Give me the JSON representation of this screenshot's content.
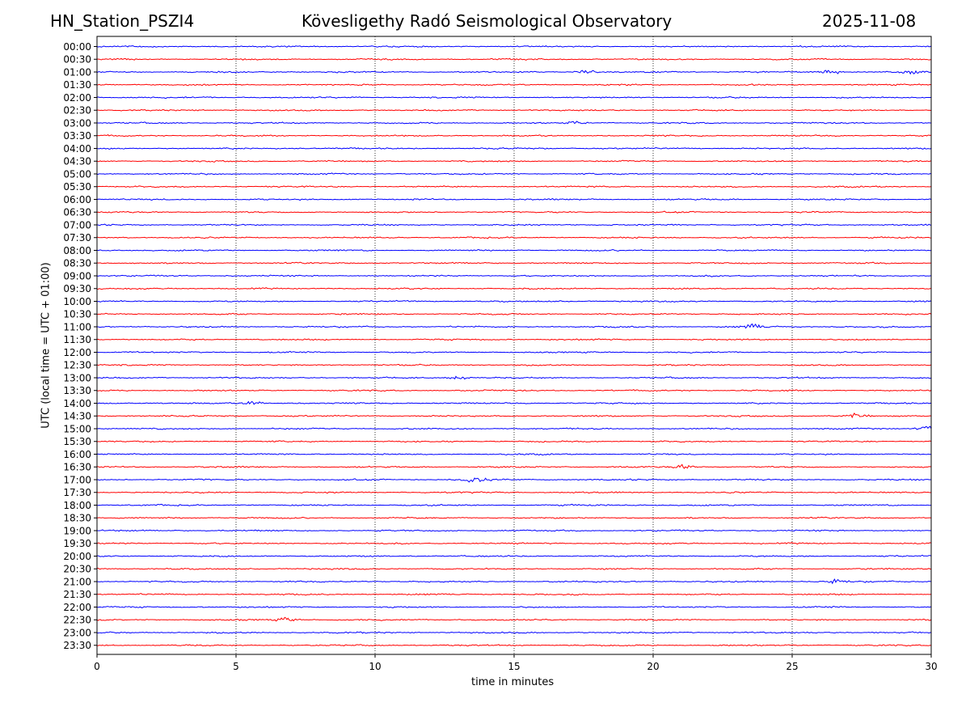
{
  "header": {
    "station": "HN_Station_PSZI4",
    "observatory": "Kövesligethy Radó Seismological Observatory",
    "date": "2025-11-08"
  },
  "chart_data": {
    "type": "line",
    "title": "Kövesligethy Radó Seismological Observatory",
    "xlabel": "time in minutes",
    "ylabel": "UTC (local time = UTC + 01:00)",
    "xlim": [
      0,
      30
    ],
    "xticks": [
      "0",
      "5",
      "10",
      "15",
      "20",
      "25",
      "30"
    ],
    "grid": "vertical dotted lines at each x tick",
    "colors": {
      "even_row": "#0000ff",
      "odd_row": "#ff0000",
      "grid": "#000000"
    },
    "rows": [
      "00:00",
      "00:30",
      "01:00",
      "01:30",
      "02:00",
      "02:30",
      "03:00",
      "03:30",
      "04:00",
      "04:30",
      "05:00",
      "05:30",
      "06:00",
      "06:30",
      "07:00",
      "07:30",
      "08:00",
      "08:30",
      "09:00",
      "09:30",
      "10:00",
      "10:30",
      "11:00",
      "11:30",
      "12:00",
      "12:30",
      "13:00",
      "13:30",
      "14:00",
      "14:30",
      "15:00",
      "15:30",
      "16:00",
      "16:30",
      "17:00",
      "17:30",
      "18:00",
      "18:30",
      "19:00",
      "19:30",
      "20:00",
      "20:30",
      "21:00",
      "21:30",
      "22:00",
      "22:30",
      "23:00",
      "23:30"
    ],
    "events": [
      {
        "row": "01:00",
        "minute": 17.6,
        "amplitude": 1.8
      },
      {
        "row": "01:00",
        "minute": 26.4,
        "amplitude": 2.2
      },
      {
        "row": "01:00",
        "minute": 29.3,
        "amplitude": 1.6
      },
      {
        "row": "03:00",
        "minute": 17.2,
        "amplitude": 1.2
      },
      {
        "row": "11:00",
        "minute": 23.6,
        "amplitude": 2.2
      },
      {
        "row": "13:00",
        "minute": 13.0,
        "amplitude": 2.0
      },
      {
        "row": "14:00",
        "minute": 5.6,
        "amplitude": 2.4
      },
      {
        "row": "14:30",
        "minute": 27.3,
        "amplitude": 2.0
      },
      {
        "row": "15:00",
        "minute": 29.8,
        "amplitude": 2.0
      },
      {
        "row": "16:30",
        "minute": 21.1,
        "amplitude": 2.0
      },
      {
        "row": "17:00",
        "minute": 13.6,
        "amplitude": 3.5
      },
      {
        "row": "21:00",
        "minute": 26.6,
        "amplitude": 1.8
      },
      {
        "row": "22:30",
        "minute": 6.8,
        "amplitude": 2.2
      }
    ]
  }
}
